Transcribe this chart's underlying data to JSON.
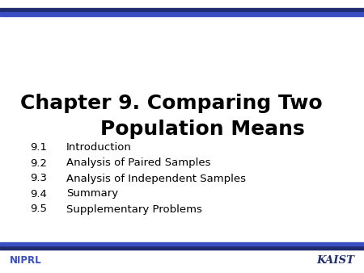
{
  "title_line1": "Chapter 9. Comparing Two",
  "title_line2": "Population Means",
  "sections": [
    {
      "number": "9.1",
      "text": "Introduction"
    },
    {
      "number": "9.2",
      "text": "Analysis of Paired Samples"
    },
    {
      "number": "9.3",
      "text": "Analysis of Independent Samples"
    },
    {
      "number": "9.4",
      "text": "Summary"
    },
    {
      "number": "9.5",
      "text": "Supplementary Problems"
    }
  ],
  "niprl_text": "NIPRL",
  "kaist_text": "KAIST",
  "top_dark_bar_color": "#1F2D6E",
  "top_blue_bar_color": "#3A4FC4",
  "bottom_dark_bar_color": "#1F2D6E",
  "bottom_blue_bar_color": "#3A4FC4",
  "niprl_color": "#3A4FC4",
  "kaist_color": "#1F2D6E",
  "background_color": "#ffffff",
  "title_fontsize": 18,
  "section_fontsize": 9.5,
  "footer_fontsize": 8.5
}
